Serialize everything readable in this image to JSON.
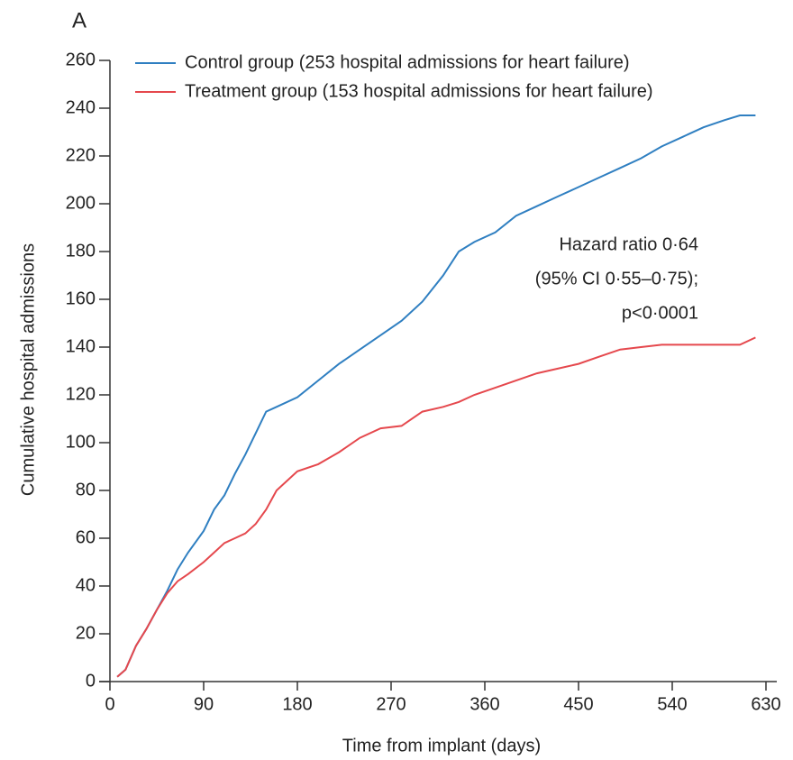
{
  "chart_data": {
    "type": "line",
    "panel_label": "A",
    "x_label": "Time from implant (days)",
    "y_label": "Cumulative hospital admissions",
    "annotation": [
      "Hazard ratio 0·64",
      "(95% CI 0·55–0·75);",
      "p<0·0001"
    ],
    "x": [
      7,
      15,
      25,
      35,
      45,
      55,
      65,
      75,
      90,
      100,
      110,
      120,
      130,
      140,
      150,
      160,
      180,
      200,
      220,
      240,
      260,
      280,
      300,
      320,
      335,
      350,
      370,
      390,
      410,
      430,
      450,
      470,
      490,
      510,
      530,
      550,
      570,
      590,
      605,
      620
    ],
    "series": [
      {
        "name": "Control group (253 hospital admissions for heart failure)",
        "color": "#2f7fc1",
        "values": [
          2,
          5,
          15,
          22,
          30,
          38,
          47,
          54,
          63,
          72,
          78,
          87,
          95,
          104,
          113,
          115,
          119,
          126,
          133,
          139,
          145,
          151,
          159,
          170,
          180,
          184,
          188,
          195,
          199,
          203,
          207,
          211,
          215,
          219,
          224,
          228,
          232,
          235,
          237,
          237
        ]
      },
      {
        "name": "Treatment group (153 hospital admissions for heart failure)",
        "color": "#e5484d",
        "values": [
          2,
          5,
          15,
          22,
          30,
          37,
          42,
          45,
          50,
          54,
          58,
          60,
          62,
          66,
          72,
          80,
          88,
          91,
          96,
          102,
          106,
          107,
          113,
          115,
          117,
          120,
          123,
          126,
          129,
          131,
          133,
          136,
          139,
          140,
          141,
          141,
          141,
          141,
          141,
          144
        ]
      }
    ],
    "xlim": [
      0,
      630
    ],
    "xticks": [
      0,
      90,
      180,
      270,
      360,
      450,
      540,
      630
    ],
    "ylim": [
      0,
      260
    ],
    "yticks": [
      0,
      20,
      40,
      60,
      80,
      100,
      120,
      140,
      160,
      180,
      200,
      220,
      240,
      260
    ]
  }
}
